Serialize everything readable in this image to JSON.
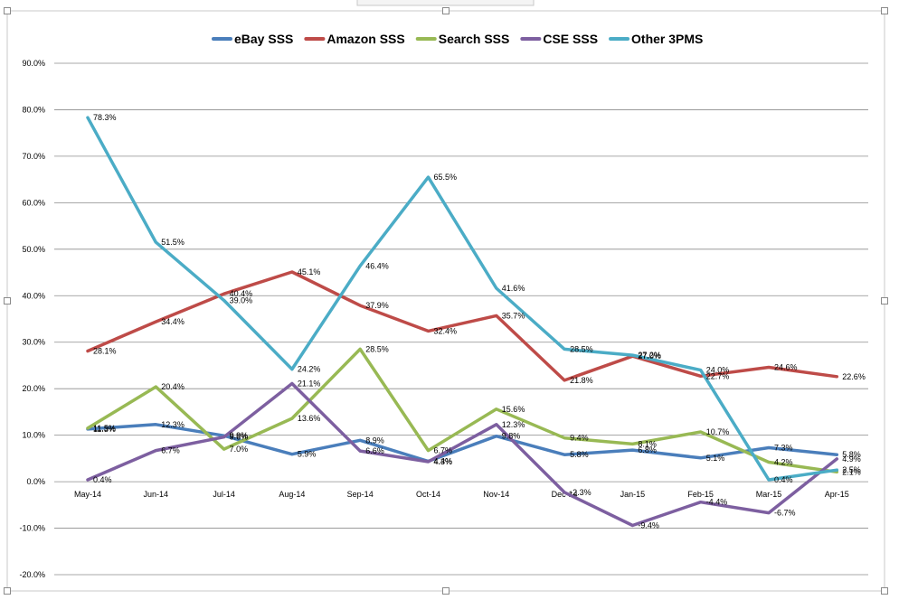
{
  "chart_data": {
    "type": "line",
    "title": "",
    "xlabel": "",
    "ylabel": "",
    "categories": [
      "May-14",
      "Jun-14",
      "Jul-14",
      "Aug-14",
      "Sep-14",
      "Oct-14",
      "Nov-14",
      "Dec-14",
      "Jan-15",
      "Feb-15",
      "Mar-15",
      "Apr-15"
    ],
    "ylim": [
      -20,
      90
    ],
    "ytick_step": 10,
    "ytick_suffix": "%",
    "grid": true,
    "legend_position": "top",
    "series": [
      {
        "name": "eBay SSS",
        "color": "#4a7ebb",
        "values": [
          11.3,
          12.3,
          9.9,
          5.9,
          8.9,
          4.4,
          9.8,
          5.8,
          6.8,
          5.1,
          7.3,
          5.8
        ]
      },
      {
        "name": "Amazon SSS",
        "color": "#be4b48",
        "values": [
          28.1,
          34.4,
          40.4,
          45.1,
          37.9,
          32.4,
          35.7,
          21.8,
          27.0,
          22.7,
          24.6,
          22.6
        ]
      },
      {
        "name": "Search SSS",
        "color": "#98b954",
        "values": [
          11.5,
          20.4,
          7.0,
          13.6,
          28.5,
          6.7,
          15.6,
          9.4,
          8.1,
          10.7,
          4.2,
          2.1
        ]
      },
      {
        "name": "CSE SSS",
        "color": "#7d5fa0",
        "values": [
          0.4,
          6.7,
          9.6,
          21.1,
          6.6,
          4.3,
          12.3,
          -2.3,
          -9.4,
          -4.4,
          -6.7,
          4.9
        ]
      },
      {
        "name": "Other 3PMS",
        "color": "#4bacc6",
        "values": [
          78.3,
          51.5,
          39.0,
          24.2,
          46.4,
          65.5,
          41.6,
          28.5,
          27.2,
          24.0,
          0.4,
          2.5
        ]
      }
    ]
  }
}
